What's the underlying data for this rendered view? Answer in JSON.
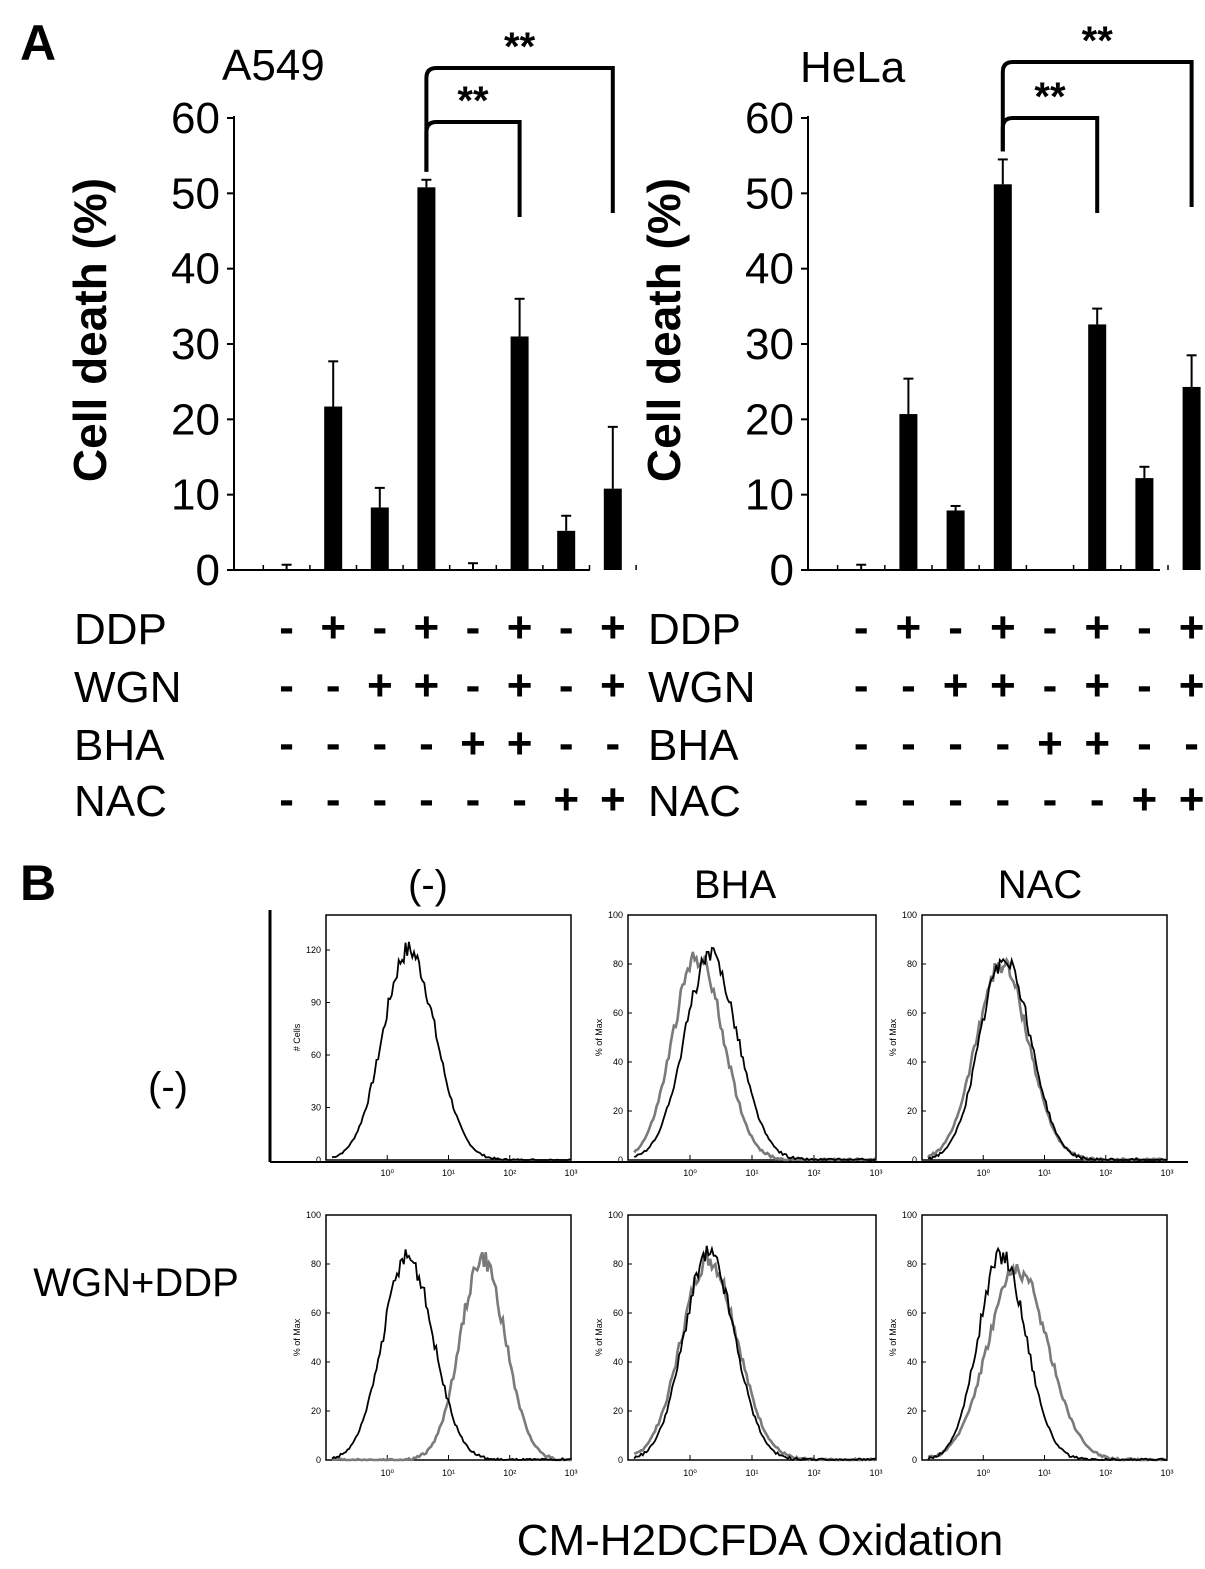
{
  "panel_a_letter": "A",
  "panel_b_letter": "B",
  "chart_data": [
    {
      "type": "bar",
      "title": "A549",
      "ylabel": "Cell death (%)",
      "ylim": [
        0,
        60
      ],
      "yticks": [
        "0",
        "10",
        "20",
        "30",
        "40",
        "50",
        "60"
      ],
      "values": [
        0.1,
        21.7,
        8.3,
        50.8,
        0.1,
        31.0,
        5.2,
        10.8
      ],
      "errors": [
        0.6,
        6.0,
        2.6,
        1.0,
        0.8,
        5.0,
        2.0,
        8.2
      ],
      "significance": [
        {
          "from": 3,
          "to": 5,
          "label": "**"
        },
        {
          "from": 3,
          "to": 7,
          "label": "**"
        }
      ],
      "treatments": [
        {
          "name": "DDP",
          "signs": [
            "-",
            "+",
            "-",
            "+",
            "-",
            "+",
            "-",
            "+"
          ]
        },
        {
          "name": "WGN",
          "signs": [
            "-",
            "-",
            "+",
            "+",
            "-",
            "+",
            "-",
            "+"
          ]
        },
        {
          "name": "BHA",
          "signs": [
            "-",
            "-",
            "-",
            "-",
            "+",
            "+",
            "-",
            "-"
          ]
        },
        {
          "name": "NAC",
          "signs": [
            "-",
            "-",
            "-",
            "-",
            "-",
            "-",
            "+",
            "+"
          ]
        }
      ]
    },
    {
      "type": "bar",
      "title": "HeLa",
      "ylabel": "Cell death (%)",
      "ylim": [
        0,
        60
      ],
      "yticks": [
        "0",
        "10",
        "20",
        "30",
        "40",
        "50",
        "60"
      ],
      "values": [
        0.1,
        20.7,
        7.9,
        51.2,
        0.0,
        32.6,
        12.2,
        24.3
      ],
      "errors": [
        0.6,
        4.7,
        0.6,
        3.3,
        0.0,
        2.1,
        1.5,
        4.2
      ],
      "significance": [
        {
          "from": 3,
          "to": 5,
          "label": "**"
        },
        {
          "from": 3,
          "to": 7,
          "label": "**"
        }
      ],
      "treatments": [
        {
          "name": "DDP",
          "signs": [
            "-",
            "+",
            "-",
            "+",
            "-",
            "+",
            "-",
            "+"
          ]
        },
        {
          "name": "WGN",
          "signs": [
            "-",
            "-",
            "+",
            "+",
            "-",
            "+",
            "-",
            "+"
          ]
        },
        {
          "name": "BHA",
          "signs": [
            "-",
            "-",
            "-",
            "-",
            "+",
            "+",
            "-",
            "-"
          ]
        },
        {
          "name": "NAC",
          "signs": [
            "-",
            "-",
            "-",
            "-",
            "-",
            "-",
            "+",
            "+"
          ]
        }
      ]
    }
  ],
  "panel_b": {
    "column_headers": [
      "(-)",
      "BHA",
      "NAC"
    ],
    "row_headers": [
      "(-)",
      "WGN+DDP"
    ],
    "xlabel": "CM-H2DCFDA Oxidation",
    "x_ticks": [
      "10⁰",
      "10¹",
      "10²",
      "10³"
    ],
    "colors": {
      "control": "#000000",
      "treated": "#7a7a7a"
    },
    "histograms": [
      {
        "ylabel": "# Cells",
        "ymax": 140,
        "yticks": [
          "0",
          "30",
          "60",
          "90",
          "120"
        ],
        "series": [
          {
            "role": "control",
            "peak_log": 0.35,
            "width": 0.42,
            "height": 120
          }
        ]
      },
      {
        "ylabel": "% of Max",
        "ymax": 100,
        "yticks": [
          "0",
          "20",
          "40",
          "60",
          "80",
          "100"
        ],
        "series": [
          {
            "role": "control",
            "peak_log": 0.33,
            "width": 0.42,
            "height": 83
          },
          {
            "role": "treated",
            "peak_log": 0.12,
            "width": 0.4,
            "height": 83
          }
        ]
      },
      {
        "ylabel": "% of Max",
        "ymax": 100,
        "yticks": [
          "0",
          "20",
          "40",
          "60",
          "80",
          "100"
        ],
        "series": [
          {
            "role": "control",
            "peak_log": 0.35,
            "width": 0.4,
            "height": 83
          },
          {
            "role": "treated",
            "peak_log": 0.3,
            "width": 0.42,
            "height": 80
          }
        ]
      },
      {
        "ylabel": "% of Max",
        "ymax": 100,
        "yticks": [
          "0",
          "20",
          "40",
          "60",
          "80",
          "100"
        ],
        "series": [
          {
            "role": "control",
            "peak_log": 0.33,
            "width": 0.4,
            "height": 83
          },
          {
            "role": "treated",
            "peak_log": 1.55,
            "width": 0.36,
            "height": 82
          }
        ]
      },
      {
        "ylabel": "% of Max",
        "ymax": 100,
        "yticks": [
          "0",
          "20",
          "40",
          "60",
          "80",
          "100"
        ],
        "series": [
          {
            "role": "control",
            "peak_log": 0.3,
            "width": 0.4,
            "height": 84
          },
          {
            "role": "treated",
            "peak_log": 0.3,
            "width": 0.44,
            "height": 82
          }
        ]
      },
      {
        "ylabel": "% of Max",
        "ymax": 100,
        "yticks": [
          "0",
          "20",
          "40",
          "60",
          "80",
          "100"
        ],
        "series": [
          {
            "role": "control",
            "peak_log": 0.3,
            "width": 0.38,
            "height": 84
          },
          {
            "role": "treated",
            "peak_log": 0.55,
            "width": 0.48,
            "height": 78
          }
        ]
      }
    ]
  }
}
